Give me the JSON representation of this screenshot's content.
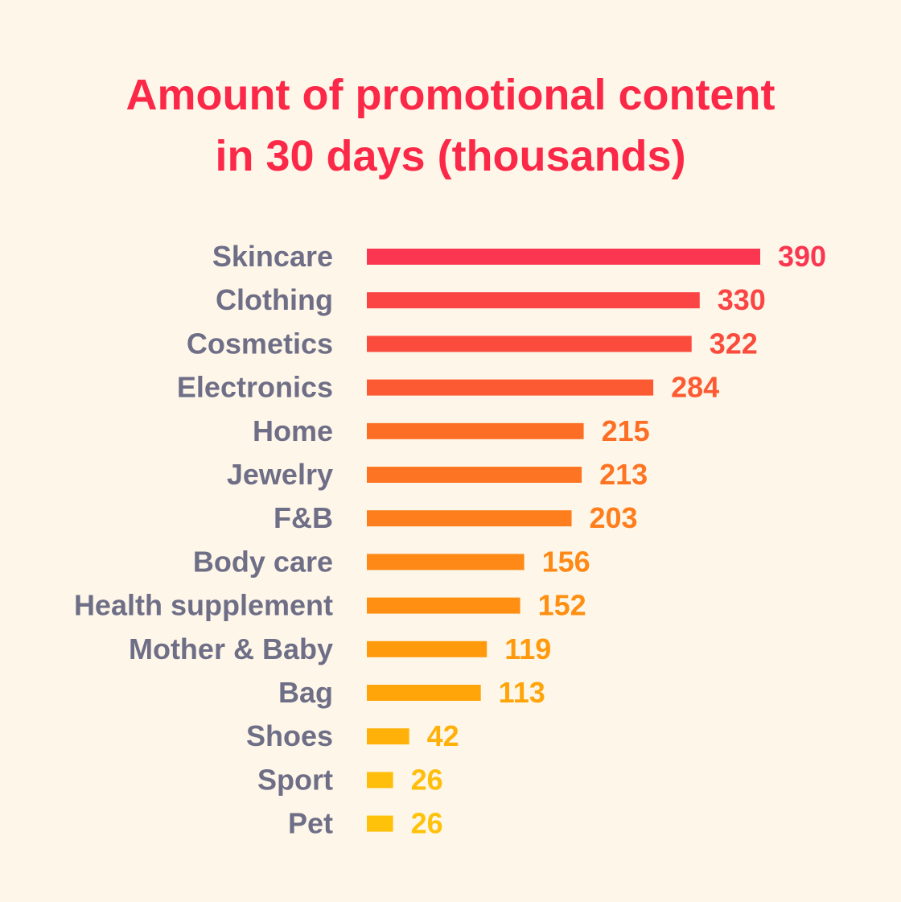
{
  "chart_data": {
    "type": "bar",
    "orientation": "horizontal",
    "title_lines": [
      "Amount of promotional content",
      "in 30 days (thousands)"
    ],
    "categories": [
      "Skincare",
      "Clothing",
      "Cosmetics",
      "Electronics",
      "Home",
      "Jewelry",
      "F&B",
      "Body care",
      "Health supplement",
      "Mother & Baby",
      "Bag",
      "Shoes",
      "Sport",
      "Pet"
    ],
    "values": [
      390,
      330,
      322,
      284,
      215,
      213,
      203,
      156,
      152,
      119,
      113,
      42,
      26,
      26
    ],
    "value_labels": [
      "390",
      "330",
      "322",
      "284",
      "215",
      "213",
      "203",
      "156",
      "152",
      "119",
      "113",
      "42",
      "26",
      "26"
    ],
    "colors": [
      "#FA3650",
      "#FB4444",
      "#FB4B3C",
      "#FC5A32",
      "#FD6E25",
      "#FD7423",
      "#FE7D1C",
      "#FE8917",
      "#FF8F12",
      "#FF9A0C",
      "#FFA50A",
      "#FFB10A",
      "#FFBE0B",
      "#FFC20B"
    ],
    "label_color": "#6F6E87",
    "title_color": "#FB2848",
    "background": "#FEF7E9",
    "xlim": [
      0,
      390
    ],
    "grid": false,
    "legend": "none"
  }
}
